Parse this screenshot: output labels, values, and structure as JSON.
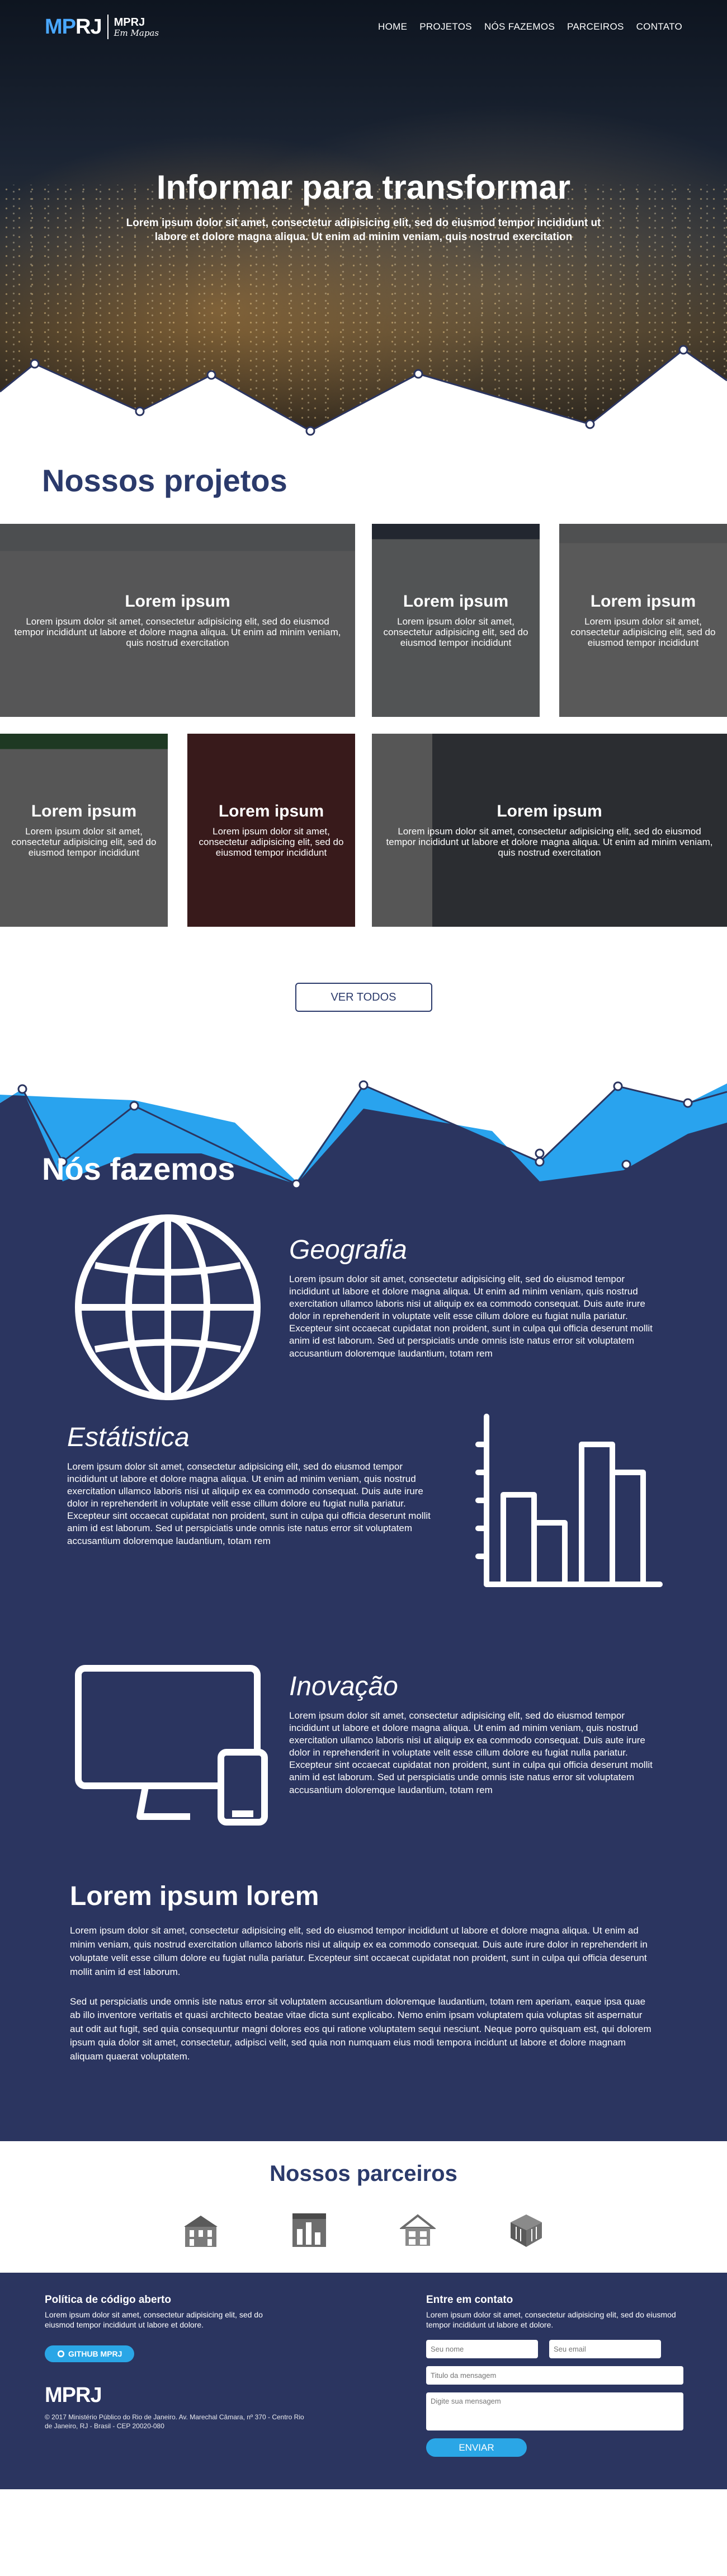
{
  "nav": {
    "logo_text": "MPRJ",
    "logo_sub_a": "MPRJ",
    "logo_sub_b": "Em Mapas",
    "items": [
      "HOME",
      "PROJETOS",
      "NÓS FAZEMOS",
      "PARCEIROS",
      "CONTATO"
    ]
  },
  "hero": {
    "title": "Informar para transformar",
    "subtitle": "Lorem ipsum dolor sit amet, consectetur adipisicing elit, sed do eiusmod tempor incididunt ut labore et dolore magna aliqua. Ut enim ad minim veniam, quis nostrud exercitation"
  },
  "projects": {
    "title": "Nossos projetos",
    "cards": [
      {
        "title": "Lorem ipsum",
        "text": "Lorem ipsum dolor sit amet, consectetur adipisicing elit, sed do eiusmod tempor incididunt ut labore et dolore magna aliqua. Ut enim ad minim veniam, quis nostrud exercitation"
      },
      {
        "title": "Lorem ipsum",
        "text": "Lorem ipsum dolor sit amet, consectetur adipisicing elit, sed do eiusmod tempor incididunt"
      },
      {
        "title": "Lorem ipsum",
        "text": "Lorem ipsum dolor sit amet, consectetur adipisicing elit, sed do eiusmod tempor incididunt"
      },
      {
        "title": "Lorem ipsum",
        "text": "Lorem ipsum dolor sit amet, consectetur adipisicing elit, sed do eiusmod tempor incididunt"
      },
      {
        "title": "Lorem ipsum",
        "text": "Lorem ipsum dolor sit amet, consectetur adipisicing elit, sed do eiusmod tempor incididunt"
      },
      {
        "title": "Lorem ipsum",
        "text": "Lorem ipsum dolor sit amet, consectetur adipisicing elit, sed do eiusmod tempor incididunt ut labore et dolore magna aliqua. Ut enim ad minim veniam, quis nostrud exercitation"
      }
    ],
    "button": "VER TODOS"
  },
  "fazemos": {
    "title": "Nós fazemos",
    "features": [
      {
        "title": "Geografia",
        "icon": "globe-icon",
        "text": "Lorem ipsum dolor sit amet, consectetur adipisicing elit, sed do eiusmod tempor incididunt ut labore et dolore magna aliqua. Ut enim ad minim veniam, quis nostrud exercitation ullamco laboris nisi ut aliquip ex ea commodo consequat. Duis aute irure dolor in reprehenderit in voluptate velit esse cillum dolore eu fugiat nulla pariatur. Excepteur sint occaecat cupidatat non proident, sunt in culpa qui officia deserunt mollit anim id est laborum. Sed ut  perspiciatis unde omnis iste natus error sit voluptatem accusantium doloremque laudantium, totam rem"
      },
      {
        "title": "Estátistica",
        "icon": "bar-chart-icon",
        "text": "Lorem ipsum dolor sit amet, consectetur adipisicing elit, sed do eiusmod tempor incididunt ut labore et dolore magna aliqua. Ut enim ad minim veniam, quis nostrud exercitation ullamco laboris nisi ut aliquip ex ea commodo consequat. Duis aute irure dolor in reprehenderit in voluptate velit esse cillum dolore eu fugiat nulla pariatur. Excepteur sint occaecat cupidatat non proident, sunt in culpa qui officia deserunt mollit anim id est laborum. Sed ut  perspiciatis unde omnis iste natus error sit voluptatem accusantium doloremque laudantium, totam rem"
      },
      {
        "title": "Inovação",
        "icon": "devices-icon",
        "text": "Lorem ipsum dolor sit amet, consectetur adipisicing elit, sed do eiusmod tempor incididunt ut labore et dolore magna aliqua. Ut enim ad minim veniam, quis nostrud exercitation ullamco laboris nisi ut aliquip ex ea commodo consequat. Duis aute irure dolor in reprehenderit in voluptate velit esse cillum dolore eu fugiat nulla pariatur. Excepteur sint occaecat cupidatat non proident, sunt in culpa qui officia deserunt mollit anim id est laborum. Sed ut  perspiciatis unde omnis iste natus error sit voluptatem accusantium doloremque laudantium, totam rem"
      }
    ],
    "long_title": "Lorem ipsum lorem",
    "long_p1": "Lorem ipsum dolor sit amet, consectetur adipisicing elit, sed do eiusmod tempor incididunt ut labore et dolore magna aliqua. Ut enim ad minim veniam, quis nostrud exercitation ullamco laboris nisi ut aliquip ex ea commodo consequat. Duis aute irure dolor in reprehenderit in voluptate velit esse cillum dolore eu fugiat nulla pariatur. Excepteur sint occaecat cupidatat non proident, sunt in culpa qui officia deserunt mollit anim id est laborum.",
    "long_p2": "Sed ut  perspiciatis unde omnis iste natus error sit voluptatem accusantium doloremque laudantium, totam rem aperiam, eaque ipsa quae ab illo inventore veritatis et quasi architecto beatae vitae dicta sunt explicabo. Nemo enim ipsam voluptatem quia voluptas sit aspernatur aut odit aut fugit, sed quia consequuntur magni dolores eos qui ratione voluptatem sequi nesciunt. Neque porro quisquam est, qui dolorem ipsum quia dolor sit amet, consectetur, adipisci velit, sed quia non numquam eius modi tempora incidunt ut labore et dolore magnam aliquam quaerat voluptatem."
  },
  "partners": {
    "title": "Nossos parceiros",
    "icons": [
      "building-partner-icon",
      "chart-panel-partner-icon",
      "house-partner-icon",
      "box-partner-icon"
    ]
  },
  "footer": {
    "oss_title": "Política de código aberto",
    "oss_text": "Lorem ipsum dolor sit amet, consectetur adipisicing elit, sed do eiusmod tempor incididunt ut labore et dolore.",
    "github_btn": "GITHUB MPRJ",
    "logo": "MPRJ",
    "copyright": "© 2017 Ministério Público do Rio de Janeiro. Av. Marechal Câmara, nº 370 - Centro Rio de Janeiro, RJ - Brasil - CEP 20020-080",
    "contact_title": "Entre em contato",
    "contact_text": "Lorem ipsum dolor sit amet, consectetur adipisicing elit, sed do eiusmod tempor incididunt ut labore et dolore.",
    "name_ph": "Seu nome",
    "email_ph": "Seu email",
    "subject_ph": "Titulo da mensagem",
    "message_ph": "Digite sua mensagem",
    "send": "ENVIAR"
  },
  "colors": {
    "navy": "#2b3560",
    "title_blue": "#2b3a6b",
    "accent": "#2aa6e6",
    "wave_light": "#29a3ee"
  }
}
